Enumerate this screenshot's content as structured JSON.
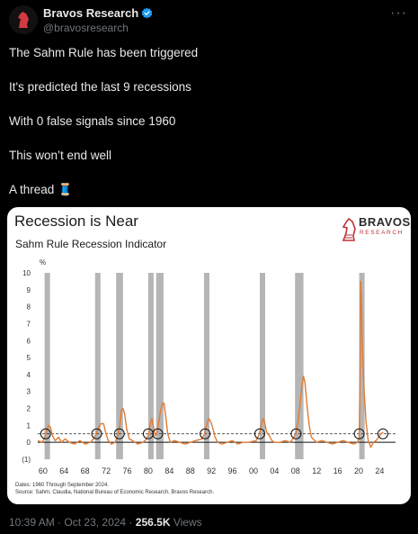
{
  "author": {
    "name": "Bravos Research",
    "handle": "@bravosresearch",
    "verified": true
  },
  "tweet_lines": [
    "The Sahm Rule has been triggered",
    "It's predicted the last 9 recessions",
    "With 0 false signals since 1960",
    "This won’t end well",
    "A thread"
  ],
  "thread_emoji": "🧵",
  "card": {
    "title": "Recession is Near",
    "subtitle": "Sahm Rule Recession Indicator",
    "logo_word": "BRAVOS",
    "logo_sub": "RESEARCH",
    "dates_note": "Dates: 1960 Through September 2024.",
    "source_note": "Source: Sahm, Claudia, National Bureau of Economic Research, Bravos Research."
  },
  "meta": {
    "time": "10:39 AM",
    "date": "Oct 23, 2024",
    "views": "256.5K",
    "views_label": "Views"
  },
  "colors": {
    "line": "#e07b34",
    "recession_band": "#b5b5b5",
    "threshold": "#222222",
    "verified": "#1d9bf0"
  },
  "chart_data": {
    "type": "line",
    "title": "Recession is Near",
    "subtitle": "Sahm Rule Recession Indicator",
    "ylabel": "%",
    "ylim": [
      -1,
      10
    ],
    "yticks": [
      -1,
      0,
      1,
      2,
      3,
      4,
      5,
      6,
      7,
      8,
      9,
      10
    ],
    "ytick_labels": [
      "(1)",
      "0",
      "1",
      "2",
      "3",
      "4",
      "5",
      "6",
      "7",
      "8",
      "9",
      "10"
    ],
    "xlim": [
      1959,
      2027
    ],
    "xticks": [
      1960,
      1964,
      1968,
      1972,
      1976,
      1980,
      1984,
      1988,
      1992,
      1996,
      2000,
      2004,
      2008,
      2012,
      2016,
      2020,
      2024
    ],
    "xtick_labels": [
      "60",
      "64",
      "68",
      "72",
      "76",
      "80",
      "84",
      "88",
      "92",
      "96",
      "00",
      "04",
      "08",
      "12",
      "16",
      "20",
      "24"
    ],
    "threshold": 0.5,
    "recessions": [
      [
        1960.3,
        1961.1
      ],
      [
        1969.9,
        1970.9
      ],
      [
        1973.9,
        1975.2
      ],
      [
        1980.0,
        1980.6
      ],
      [
        1981.5,
        1982.9
      ],
      [
        1990.6,
        1991.2
      ],
      [
        2001.2,
        2001.9
      ],
      [
        2007.9,
        2009.5
      ],
      [
        2020.1,
        2020.4
      ]
    ],
    "signal_circles": [
      [
        1960.5,
        0.5
      ],
      [
        1970.2,
        0.5
      ],
      [
        1974.5,
        0.5
      ],
      [
        1980.0,
        0.5
      ],
      [
        1981.8,
        0.5
      ],
      [
        1990.8,
        0.5
      ],
      [
        2001.2,
        0.5
      ],
      [
        2008.1,
        0.5
      ],
      [
        2020.1,
        0.5
      ],
      [
        2024.6,
        0.5
      ]
    ],
    "series": [
      {
        "values": [
          [
            1959.0,
            0.1
          ],
          [
            1959.8,
            0.0
          ],
          [
            1960.2,
            0.2
          ],
          [
            1960.6,
            0.6
          ],
          [
            1961.0,
            1.0
          ],
          [
            1961.4,
            0.9
          ],
          [
            1961.8,
            0.4
          ],
          [
            1962.3,
            0.1
          ],
          [
            1963.0,
            0.3
          ],
          [
            1963.5,
            0.0
          ],
          [
            1964.2,
            0.2
          ],
          [
            1965.0,
            0.0
          ],
          [
            1966.0,
            -0.1
          ],
          [
            1967.0,
            0.1
          ],
          [
            1968.0,
            -0.1
          ],
          [
            1969.0,
            0.0
          ],
          [
            1969.6,
            0.2
          ],
          [
            1970.1,
            0.5
          ],
          [
            1970.6,
            0.9
          ],
          [
            1971.0,
            1.1
          ],
          [
            1971.5,
            1.1
          ],
          [
            1971.9,
            0.6
          ],
          [
            1972.4,
            0.1
          ],
          [
            1973.0,
            -0.1
          ],
          [
            1973.7,
            0.0
          ],
          [
            1974.2,
            0.4
          ],
          [
            1974.6,
            1.0
          ],
          [
            1974.9,
            1.9
          ],
          [
            1975.2,
            2.0
          ],
          [
            1975.5,
            1.7
          ],
          [
            1975.9,
            0.8
          ],
          [
            1976.4,
            0.2
          ],
          [
            1977.0,
            0.1
          ],
          [
            1978.0,
            -0.1
          ],
          [
            1979.0,
            0.0
          ],
          [
            1979.7,
            0.2
          ],
          [
            1980.1,
            0.5
          ],
          [
            1980.4,
            1.1
          ],
          [
            1980.7,
            1.4
          ],
          [
            1981.0,
            0.9
          ],
          [
            1981.3,
            0.4
          ],
          [
            1981.6,
            0.5
          ],
          [
            1981.9,
            1.0
          ],
          [
            1982.3,
            1.8
          ],
          [
            1982.7,
            2.3
          ],
          [
            1983.0,
            2.3
          ],
          [
            1983.3,
            1.6
          ],
          [
            1983.7,
            0.5
          ],
          [
            1984.2,
            0.0
          ],
          [
            1985.0,
            0.1
          ],
          [
            1986.0,
            0.0
          ],
          [
            1987.0,
            -0.1
          ],
          [
            1988.0,
            0.0
          ],
          [
            1989.0,
            0.1
          ],
          [
            1990.2,
            0.2
          ],
          [
            1990.7,
            0.5
          ],
          [
            1991.0,
            0.9
          ],
          [
            1991.5,
            1.4
          ],
          [
            1991.9,
            1.2
          ],
          [
            1992.3,
            0.8
          ],
          [
            1992.7,
            0.3
          ],
          [
            1993.2,
            0.0
          ],
          [
            1994.0,
            -0.1
          ],
          [
            1995.0,
            0.0
          ],
          [
            1996.0,
            0.1
          ],
          [
            1997.0,
            -0.1
          ],
          [
            1998.0,
            0.0
          ],
          [
            1999.0,
            0.0
          ],
          [
            2000.5,
            0.1
          ],
          [
            2001.0,
            0.4
          ],
          [
            2001.4,
            0.9
          ],
          [
            2001.8,
            1.4
          ],
          [
            2002.1,
            1.2
          ],
          [
            2002.5,
            0.6
          ],
          [
            2003.0,
            0.4
          ],
          [
            2003.5,
            0.1
          ],
          [
            2004.0,
            0.0
          ],
          [
            2005.0,
            0.0
          ],
          [
            2006.0,
            0.1
          ],
          [
            2007.0,
            0.0
          ],
          [
            2007.7,
            0.3
          ],
          [
            2008.1,
            0.6
          ],
          [
            2008.5,
            1.3
          ],
          [
            2008.9,
            2.4
          ],
          [
            2009.2,
            3.3
          ],
          [
            2009.5,
            3.9
          ],
          [
            2009.8,
            3.5
          ],
          [
            2010.2,
            2.1
          ],
          [
            2010.6,
            1.0
          ],
          [
            2011.0,
            0.3
          ],
          [
            2012.0,
            0.0
          ],
          [
            2013.0,
            0.1
          ],
          [
            2014.0,
            0.0
          ],
          [
            2015.0,
            -0.1
          ],
          [
            2016.0,
            0.0
          ],
          [
            2017.0,
            0.1
          ],
          [
            2018.0,
            0.0
          ],
          [
            2019.0,
            -0.1
          ],
          [
            2019.8,
            0.0
          ],
          [
            2020.1,
            0.3
          ],
          [
            2020.25,
            4.0
          ],
          [
            2020.35,
            9.5
          ],
          [
            2020.5,
            8.6
          ],
          [
            2020.7,
            5.5
          ],
          [
            2021.0,
            3.2
          ],
          [
            2021.4,
            1.2
          ],
          [
            2021.8,
            0.1
          ],
          [
            2022.3,
            -0.3
          ],
          [
            2022.8,
            0.0
          ],
          [
            2023.3,
            0.1
          ],
          [
            2023.8,
            0.3
          ],
          [
            2024.2,
            0.5
          ],
          [
            2024.7,
            0.6
          ]
        ]
      }
    ]
  }
}
